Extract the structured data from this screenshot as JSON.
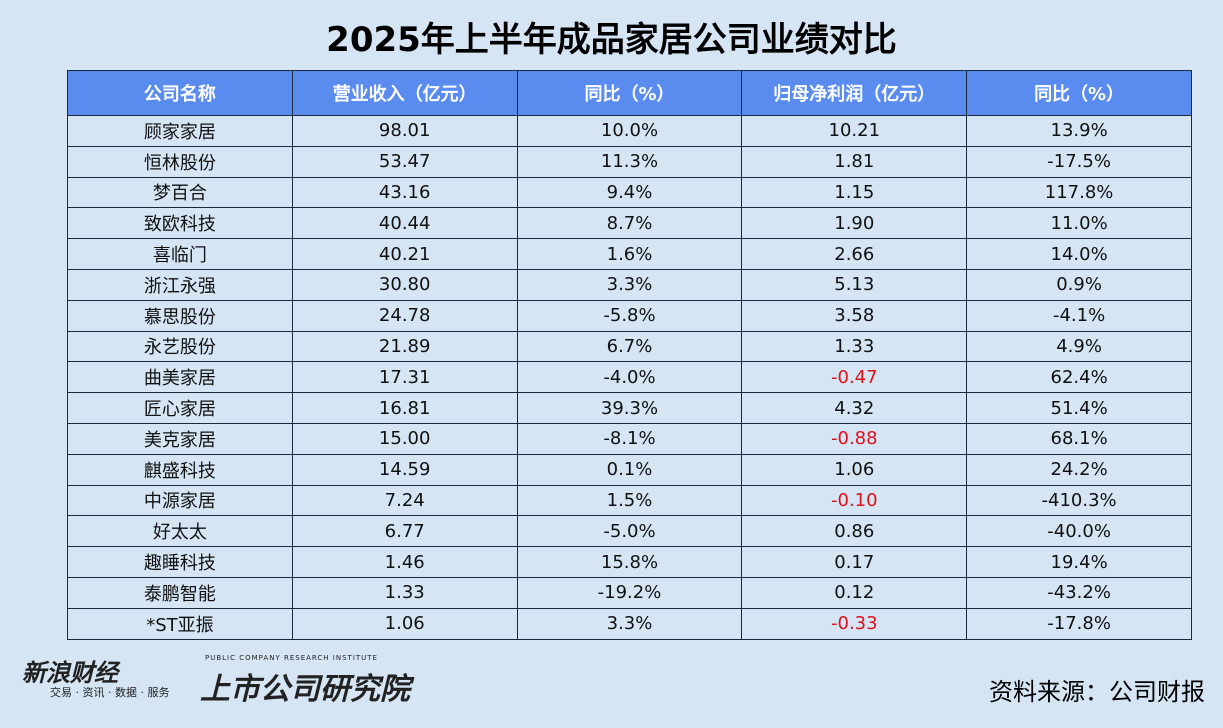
{
  "header": {
    "title": "2025年上半年成品家居公司业绩对比"
  },
  "table": {
    "columns": [
      "公司名称",
      "营业收入（亿元）",
      "同比（%）",
      "归母净利润（亿元）",
      "同比（%）"
    ],
    "rows": [
      [
        "顾家家居",
        "98.01",
        "10.0%",
        "10.21",
        "13.9%"
      ],
      [
        "恒林股份",
        "53.47",
        "11.3%",
        "1.81",
        "-17.5%"
      ],
      [
        "梦百合",
        "43.16",
        "9.4%",
        "1.15",
        "117.8%"
      ],
      [
        "致欧科技",
        "40.44",
        "8.7%",
        "1.90",
        "11.0%"
      ],
      [
        "喜临门",
        "40.21",
        "1.6%",
        "2.66",
        "14.0%"
      ],
      [
        "浙江永强",
        "30.80",
        "3.3%",
        "5.13",
        "0.9%"
      ],
      [
        "慕思股份",
        "24.78",
        "-5.8%",
        "3.58",
        "-4.1%"
      ],
      [
        "永艺股份",
        "21.89",
        "6.7%",
        "1.33",
        "4.9%"
      ],
      [
        "曲美家居",
        "17.31",
        "-4.0%",
        "-0.47",
        "62.4%"
      ],
      [
        "匠心家居",
        "16.81",
        "39.3%",
        "4.32",
        "51.4%"
      ],
      [
        "美克家居",
        "15.00",
        "-8.1%",
        "-0.88",
        "68.1%"
      ],
      [
        "麒盛科技",
        "14.59",
        "0.1%",
        "1.06",
        "24.2%"
      ],
      [
        "中源家居",
        "7.24",
        "1.5%",
        "-0.10",
        "-410.3%"
      ],
      [
        "好太太",
        "6.77",
        "-5.0%",
        "0.86",
        "-40.0%"
      ],
      [
        "趣睡科技",
        "1.46",
        "15.8%",
        "0.17",
        "19.4%"
      ],
      [
        "泰鹏智能",
        "1.33",
        "-19.2%",
        "0.12",
        "-43.2%"
      ],
      [
        "*ST亚振",
        "1.06",
        "3.3%",
        "-0.33",
        "-17.8%"
      ]
    ]
  },
  "footer": {
    "logo1": "新浪财经",
    "logo1_sub": "交易 · 资讯 · 数据 · 服务",
    "logo2": "上市公司研究院",
    "logo2_sub": "PUBLIC COMPANY RESEARCH INSTITUTE",
    "source": "资料来源：公司财报"
  }
}
